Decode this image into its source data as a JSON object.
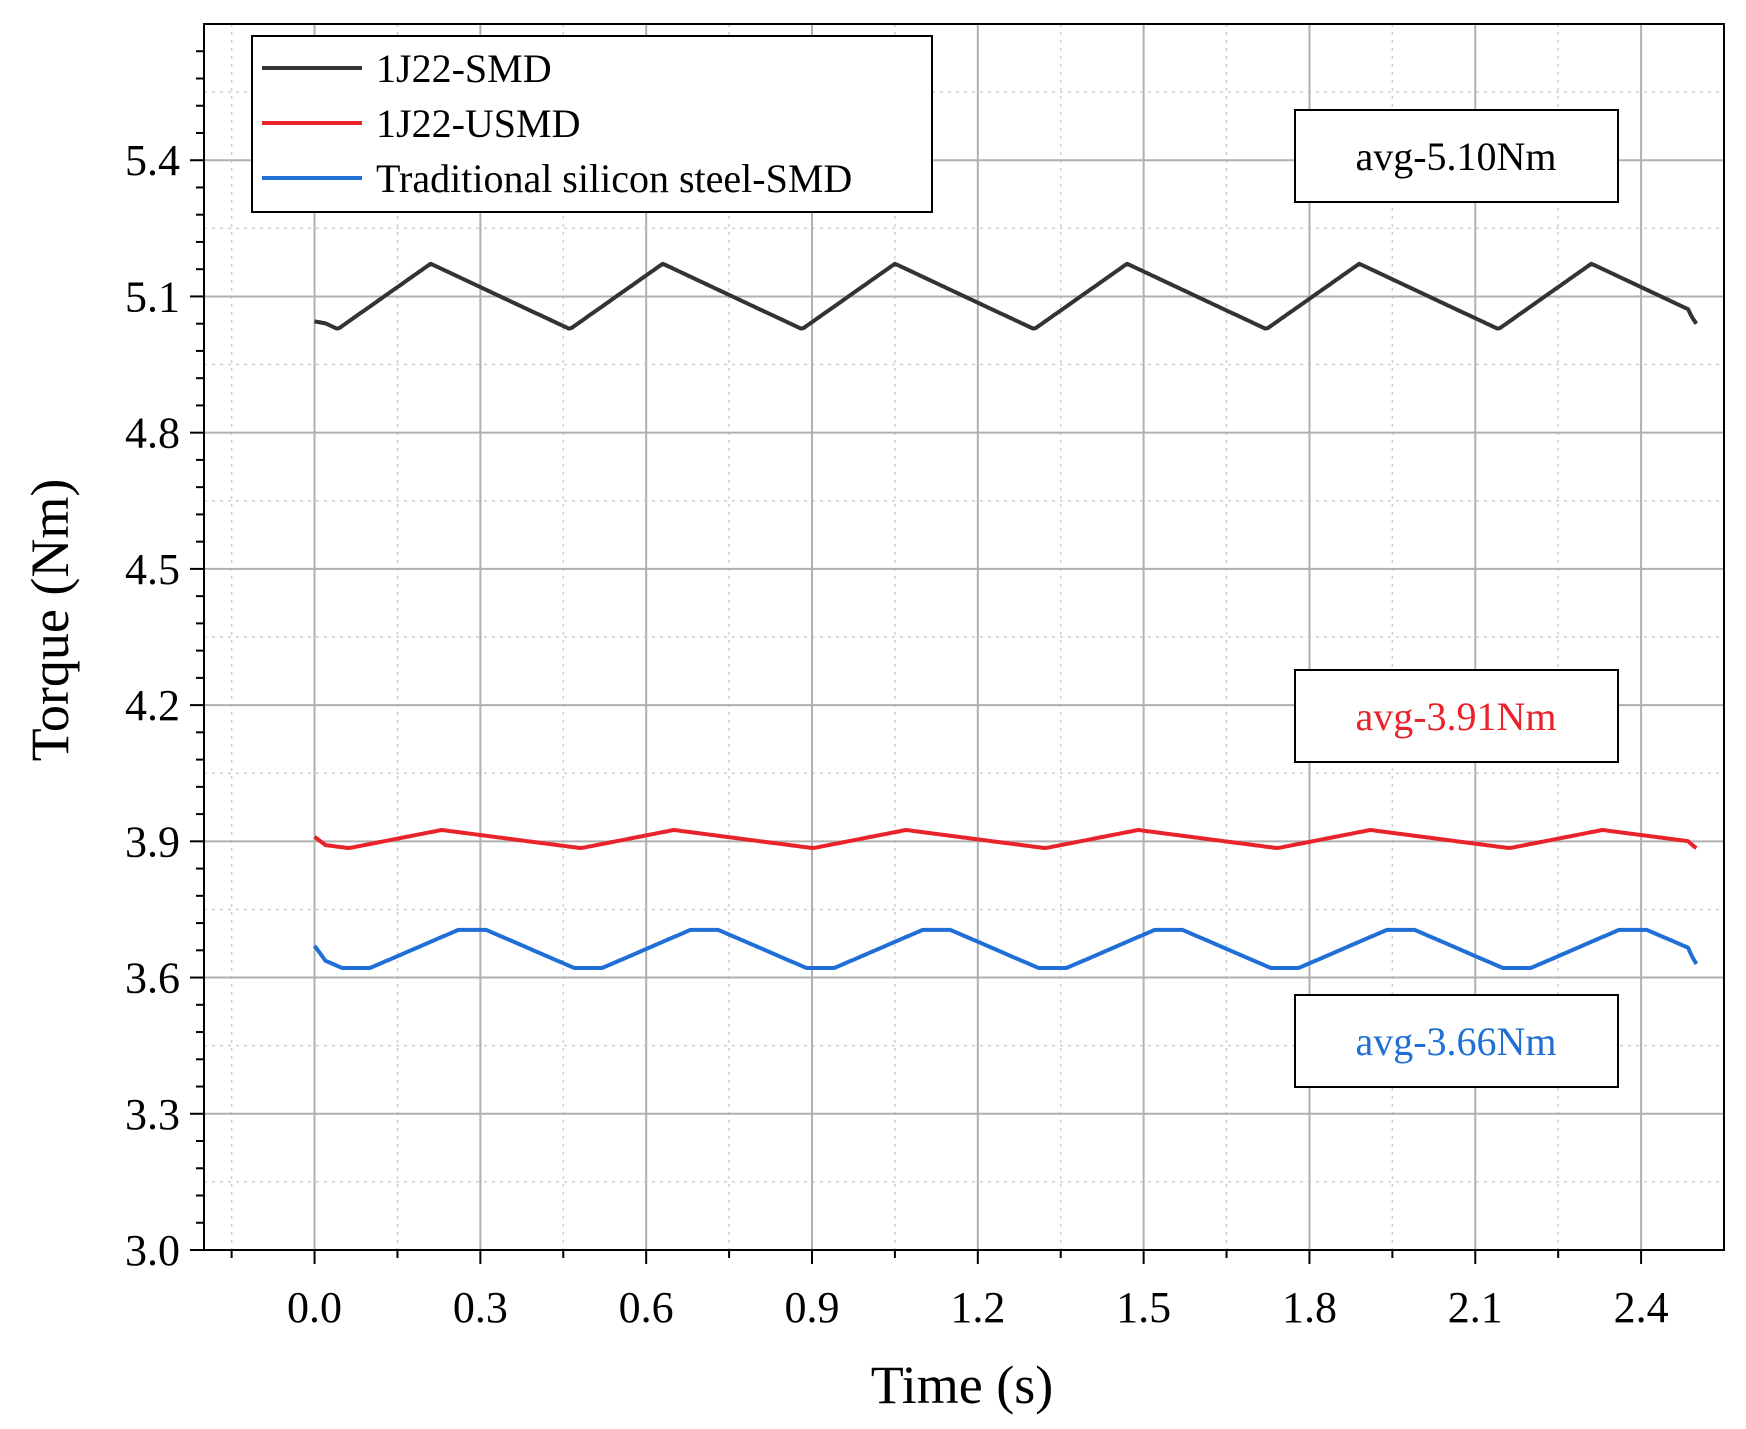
{
  "chart_data": {
    "type": "line",
    "title": "",
    "xlabel": "Time (s)",
    "ylabel": "Torque (Nm)",
    "xlim": [
      -0.2,
      2.55
    ],
    "ylim": [
      3.0,
      5.7
    ],
    "x_ticks": [
      "0.0",
      "0.3",
      "0.6",
      "0.9",
      "1.2",
      "1.5",
      "1.8",
      "2.1",
      "2.4"
    ],
    "x_tick_values": [
      0.0,
      0.3,
      0.6,
      0.9,
      1.2,
      1.5,
      1.8,
      2.1,
      2.4
    ],
    "y_ticks": [
      "3.0",
      "3.3",
      "3.6",
      "3.9",
      "4.2",
      "4.5",
      "4.8",
      "5.1",
      "5.4"
    ],
    "y_tick_values": [
      3.0,
      3.3,
      3.6,
      3.9,
      4.2,
      4.5,
      4.8,
      5.1,
      5.4
    ],
    "grid": true,
    "legend_position": "top-left",
    "series": [
      {
        "name": "1J22-SMD",
        "color": "#333333",
        "average": 5.1,
        "mean": 5.1,
        "amplitude": 0.072,
        "period": 0.42,
        "phase_peak": 0.21,
        "shape": "triangle",
        "start_value": 5.045,
        "end_value": 5.04
      },
      {
        "name": "1J22-USMD",
        "color": "#e8232a",
        "average": 3.91,
        "mean": 3.905,
        "amplitude": 0.02,
        "period": 0.42,
        "phase_peak": 0.23,
        "shape": "triangle",
        "start_value": 3.91,
        "end_value": 3.885
      },
      {
        "name": "Traditional silicon steel-SMD",
        "color": "#1f6fd6",
        "average": 3.66,
        "mean": 3.663,
        "amplitude": 0.042,
        "period": 0.42,
        "phase_peak": 0.26,
        "shape": "plateau",
        "start_value": 3.67,
        "end_value": 3.63
      }
    ],
    "annotations": [
      {
        "text": "avg-5.10Nm",
        "color": "#000000"
      },
      {
        "text": "avg-3.91Nm",
        "color": "#e8232a"
      },
      {
        "text": "avg-3.66Nm",
        "color": "#1f6fd6"
      }
    ]
  }
}
